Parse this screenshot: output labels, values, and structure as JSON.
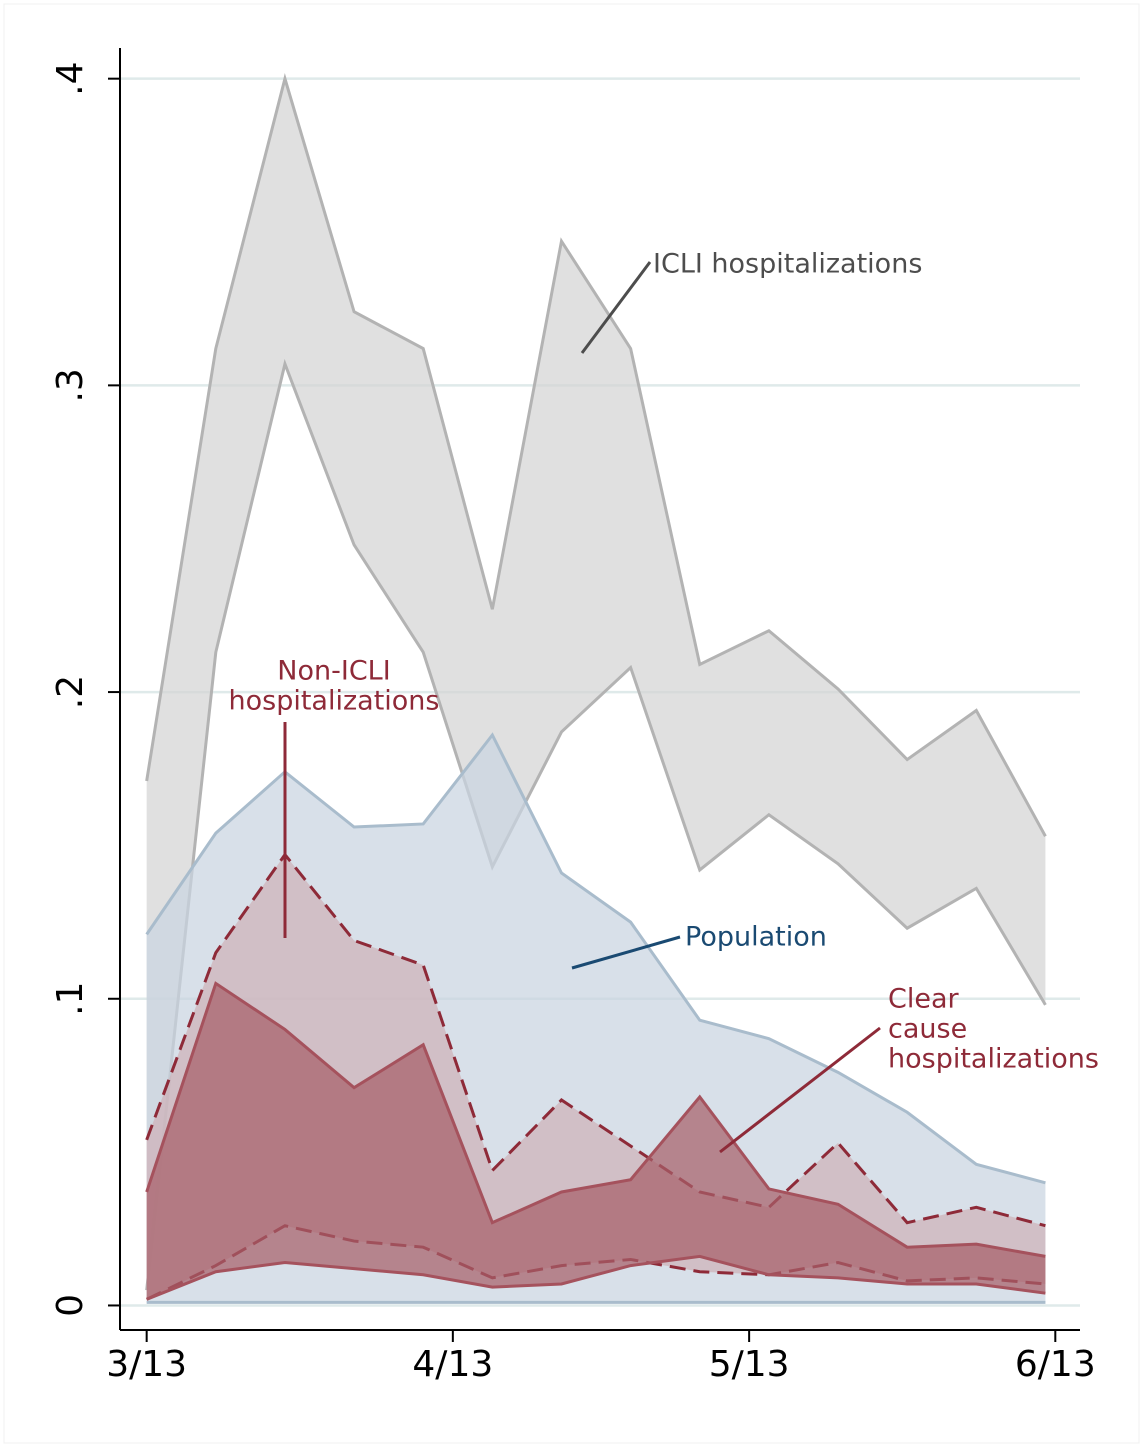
{
  "chart_data": {
    "type": "range_area",
    "x": [
      0,
      7,
      14,
      21,
      28,
      35,
      42,
      49,
      56,
      63,
      70,
      77,
      84,
      91
    ],
    "xlim": [
      -2.7,
      94.5
    ],
    "xticks": [
      {
        "value": 0,
        "label": "3/13"
      },
      {
        "value": 31,
        "label": "4/13"
      },
      {
        "value": 61,
        "label": "5/13"
      },
      {
        "value": 92,
        "label": "6/13"
      }
    ],
    "ylim": [
      -0.008,
      0.41
    ],
    "yticks": [
      0,
      {
        "value": 0.1,
        "label": ".1"
      },
      {
        "value": 0.2,
        "label": ".2"
      },
      {
        "value": 0.3,
        "label": ".3"
      },
      {
        "value": 0.4,
        "label": ".4"
      }
    ],
    "grid": true,
    "series": [
      {
        "label": [
          "ICLI hospitalizations"
        ],
        "color": "#d4d4d4",
        "line_color": "#b3b3b3",
        "text_color": "#4d4d4d",
        "dash": false,
        "upper": [
          0.171,
          0.312,
          0.4,
          0.324,
          0.312,
          0.227,
          0.347,
          0.312,
          0.209,
          0.22,
          0.201,
          0.178,
          0.194,
          0.153
        ],
        "lower": [
          0.005,
          0.213,
          0.307,
          0.248,
          0.213,
          0.143,
          0.187,
          0.208,
          0.142,
          0.16,
          0.144,
          0.123,
          0.136,
          0.098
        ]
      },
      {
        "label": [
          "Population"
        ],
        "color": "#c9d4e0",
        "line_color": "#a9bccc",
        "text_color": "#1a4a72",
        "dash": false,
        "upper": [
          0.121,
          0.154,
          0.174,
          0.156,
          0.157,
          0.186,
          0.141,
          0.125,
          0.093,
          0.087,
          0.076,
          0.063,
          0.046,
          0.04
        ],
        "lower": [
          0.001,
          0.001,
          0.001,
          0.001,
          0.001,
          0.001,
          0.001,
          0.001,
          0.001,
          0.001,
          0.001,
          0.001,
          0.001,
          0.001
        ]
      },
      {
        "label": [
          "Non-ICLI",
          "hospitalizations"
        ],
        "color": "#cfb1b9",
        "line_color": "#8e2a38",
        "text_color": "#8e2a38",
        "dash": true,
        "upper": [
          0.054,
          0.115,
          0.147,
          0.119,
          0.111,
          0.044,
          0.067,
          0.052,
          0.037,
          0.032,
          0.053,
          0.027,
          0.032,
          0.026
        ],
        "lower": [
          0.002,
          0.013,
          0.026,
          0.021,
          0.019,
          0.009,
          0.013,
          0.015,
          0.011,
          0.01,
          0.014,
          0.008,
          0.009,
          0.007
        ]
      },
      {
        "label": [
          "Clear",
          "cause",
          "hospitalizations"
        ],
        "color": "#a85f69",
        "line_color": "#a5525d",
        "text_color": "#8e2a38",
        "dash": false,
        "upper": [
          0.037,
          0.105,
          0.09,
          0.071,
          0.085,
          0.027,
          0.037,
          0.041,
          0.068,
          0.038,
          0.033,
          0.019,
          0.02,
          0.016
        ],
        "lower": [
          0.002,
          0.011,
          0.014,
          0.012,
          0.01,
          0.006,
          0.007,
          0.013,
          0.016,
          0.01,
          0.009,
          0.007,
          0.007,
          0.004
        ]
      }
    ]
  }
}
